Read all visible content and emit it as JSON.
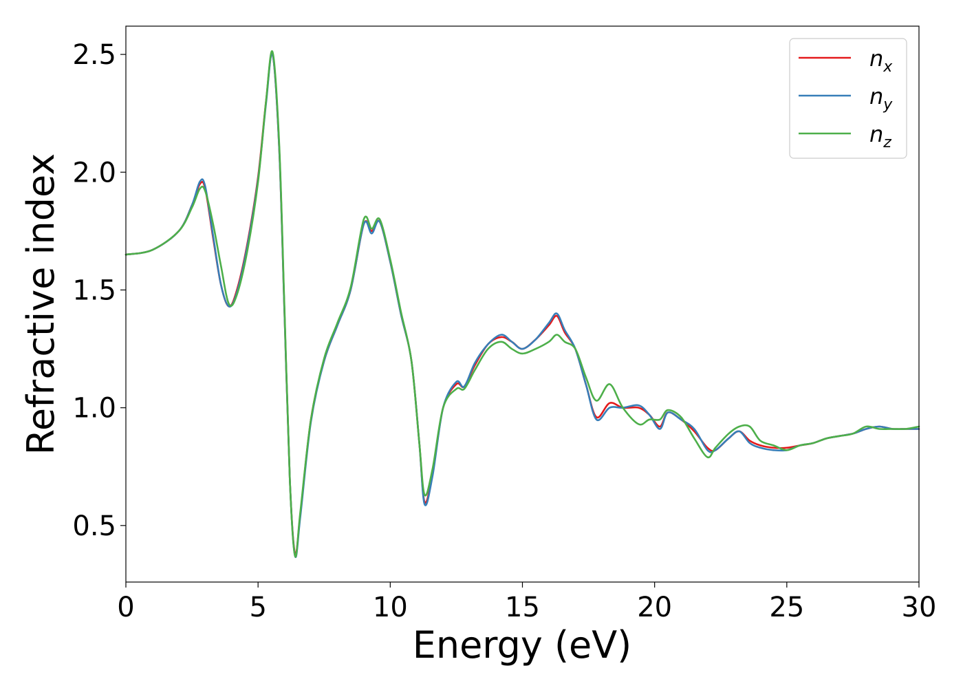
{
  "chart_data": {
    "type": "line",
    "xlabel": "Energy (eV)",
    "ylabel": "Refractive index",
    "xlim": [
      0,
      30
    ],
    "ylim": [
      0.26,
      2.62
    ],
    "xticks": [
      0,
      5,
      10,
      15,
      20,
      25,
      30
    ],
    "xtick_labels": [
      "0",
      "5",
      "10",
      "15",
      "20",
      "25",
      "30"
    ],
    "yticks": [
      0.5,
      1.0,
      1.5,
      2.0,
      2.5
    ],
    "ytick_labels": [
      "0.5",
      "1.0",
      "1.5",
      "2.0",
      "2.5"
    ],
    "grid": false,
    "legend_position": "top-right",
    "series": [
      {
        "name": "n_x",
        "label_base": "n",
        "label_sub": "x",
        "color": "#e41a1c",
        "x": [
          0,
          1,
          2,
          2.5,
          2.8,
          3.0,
          3.3,
          3.6,
          3.9,
          4.2,
          4.6,
          5.0,
          5.3,
          5.55,
          5.8,
          6.0,
          6.2,
          6.4,
          6.6,
          7.0,
          7.5,
          8.0,
          8.5,
          9.0,
          9.3,
          9.6,
          10.0,
          10.4,
          10.8,
          11.1,
          11.3,
          11.6,
          12.0,
          12.5,
          12.8,
          13.2,
          13.7,
          14.2,
          14.6,
          15.0,
          15.5,
          16.0,
          16.3,
          16.6,
          17.0,
          17.4,
          17.8,
          18.3,
          18.8,
          19.4,
          19.8,
          20.2,
          20.5,
          21.0,
          21.5,
          22.0,
          22.3,
          22.8,
          23.2,
          23.6,
          24.0,
          24.5,
          25.0,
          25.5,
          26.0,
          26.5,
          27.0,
          27.5,
          28.0,
          28.5,
          29.0,
          29.5,
          30.0
        ],
        "y": [
          1.65,
          1.67,
          1.75,
          1.86,
          1.95,
          1.93,
          1.72,
          1.52,
          1.43,
          1.5,
          1.7,
          1.98,
          2.3,
          2.5,
          2.1,
          1.4,
          0.7,
          0.38,
          0.55,
          0.95,
          1.2,
          1.35,
          1.5,
          1.78,
          1.75,
          1.79,
          1.62,
          1.4,
          1.2,
          0.85,
          0.6,
          0.72,
          1.0,
          1.1,
          1.09,
          1.18,
          1.27,
          1.3,
          1.28,
          1.25,
          1.29,
          1.35,
          1.39,
          1.32,
          1.25,
          1.1,
          0.96,
          1.02,
          1.0,
          1.0,
          0.97,
          0.92,
          0.98,
          0.95,
          0.9,
          0.83,
          0.82,
          0.87,
          0.9,
          0.86,
          0.84,
          0.83,
          0.83,
          0.84,
          0.85,
          0.87,
          0.88,
          0.89,
          0.91,
          0.92,
          0.91,
          0.91,
          0.91
        ]
      },
      {
        "name": "n_y",
        "label_base": "n",
        "label_sub": "y",
        "color": "#377eb8",
        "x": [
          0,
          1,
          2,
          2.5,
          2.8,
          3.0,
          3.3,
          3.6,
          3.9,
          4.2,
          4.6,
          5.0,
          5.3,
          5.55,
          5.8,
          6.0,
          6.2,
          6.4,
          6.6,
          7.0,
          7.5,
          8.0,
          8.5,
          9.0,
          9.3,
          9.6,
          10.0,
          10.4,
          10.8,
          11.1,
          11.3,
          11.6,
          12.0,
          12.5,
          12.8,
          13.2,
          13.7,
          14.2,
          14.6,
          15.0,
          15.5,
          16.0,
          16.3,
          16.6,
          17.0,
          17.4,
          17.8,
          18.3,
          18.8,
          19.4,
          19.8,
          20.2,
          20.5,
          21.0,
          21.5,
          22.0,
          22.3,
          22.8,
          23.2,
          23.6,
          24.0,
          24.5,
          25.0,
          25.5,
          26.0,
          26.5,
          27.0,
          27.5,
          28.0,
          28.5,
          29.0,
          29.5,
          30.0
        ],
        "y": [
          1.65,
          1.67,
          1.75,
          1.86,
          1.96,
          1.94,
          1.73,
          1.52,
          1.43,
          1.49,
          1.69,
          1.97,
          2.29,
          2.5,
          2.1,
          1.4,
          0.7,
          0.37,
          0.54,
          0.94,
          1.2,
          1.35,
          1.5,
          1.78,
          1.74,
          1.79,
          1.62,
          1.4,
          1.2,
          0.85,
          0.59,
          0.71,
          1.0,
          1.11,
          1.09,
          1.19,
          1.27,
          1.31,
          1.28,
          1.25,
          1.29,
          1.36,
          1.4,
          1.33,
          1.25,
          1.1,
          0.95,
          1.0,
          1.0,
          1.01,
          0.97,
          0.91,
          0.98,
          0.95,
          0.91,
          0.82,
          0.82,
          0.87,
          0.9,
          0.85,
          0.83,
          0.82,
          0.82,
          0.84,
          0.85,
          0.87,
          0.88,
          0.89,
          0.91,
          0.92,
          0.91,
          0.91,
          0.91
        ]
      },
      {
        "name": "n_z",
        "label_base": "n",
        "label_sub": "z",
        "color": "#4daf4a",
        "x": [
          0,
          1,
          2,
          2.5,
          2.8,
          3.0,
          3.3,
          3.6,
          3.9,
          4.2,
          4.6,
          5.0,
          5.3,
          5.55,
          5.8,
          6.0,
          6.2,
          6.4,
          6.6,
          7.0,
          7.5,
          8.0,
          8.5,
          9.0,
          9.3,
          9.6,
          10.0,
          10.4,
          10.8,
          11.1,
          11.3,
          11.6,
          12.0,
          12.5,
          12.8,
          13.2,
          13.7,
          14.2,
          14.6,
          15.0,
          15.5,
          16.0,
          16.3,
          16.6,
          17.0,
          17.4,
          17.8,
          18.3,
          18.8,
          19.4,
          19.8,
          20.2,
          20.5,
          21.0,
          21.5,
          22.0,
          22.3,
          22.8,
          23.2,
          23.6,
          24.0,
          24.5,
          25.0,
          25.5,
          26.0,
          26.5,
          27.0,
          27.5,
          28.0,
          28.5,
          29.0,
          29.5,
          30.0
        ],
        "y": [
          1.65,
          1.67,
          1.75,
          1.85,
          1.93,
          1.92,
          1.78,
          1.6,
          1.44,
          1.48,
          1.67,
          1.96,
          2.3,
          2.51,
          2.12,
          1.42,
          0.7,
          0.37,
          0.56,
          0.95,
          1.21,
          1.36,
          1.51,
          1.8,
          1.76,
          1.8,
          1.63,
          1.41,
          1.2,
          0.85,
          0.63,
          0.74,
          1.0,
          1.08,
          1.08,
          1.16,
          1.25,
          1.28,
          1.25,
          1.23,
          1.25,
          1.28,
          1.31,
          1.28,
          1.25,
          1.13,
          1.03,
          1.1,
          1.0,
          0.93,
          0.95,
          0.95,
          0.99,
          0.96,
          0.87,
          0.79,
          0.83,
          0.89,
          0.92,
          0.92,
          0.86,
          0.84,
          0.82,
          0.84,
          0.85,
          0.87,
          0.88,
          0.89,
          0.92,
          0.91,
          0.91,
          0.91,
          0.92
        ]
      }
    ]
  }
}
